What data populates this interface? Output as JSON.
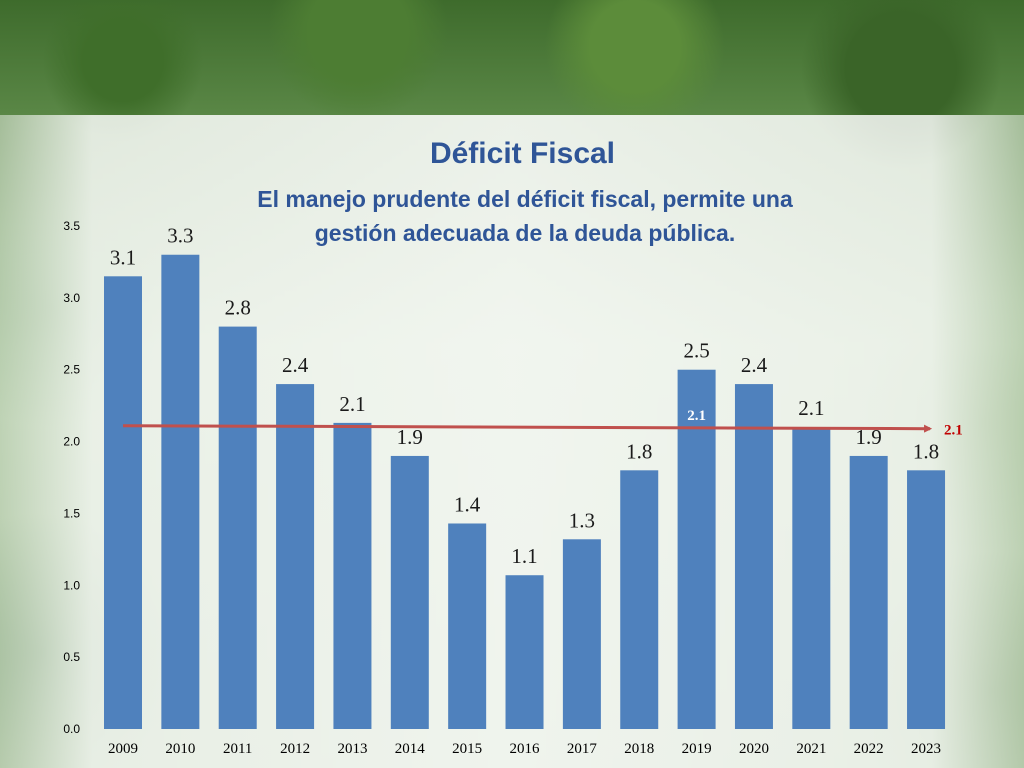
{
  "header": {
    "title": "Déficit Fiscal",
    "subtitle_line1": "El manejo prudente del déficit fiscal, permite una",
    "subtitle_line2": "gestión adecuada de  la deuda pública."
  },
  "chart_data": {
    "type": "bar",
    "categories": [
      "2009",
      "2010",
      "2011",
      "2012",
      "2013",
      "2014",
      "2015",
      "2016",
      "2017",
      "2018",
      "2019",
      "2020",
      "2021",
      "2022",
      "2023"
    ],
    "values": [
      3.15,
      3.3,
      2.8,
      2.4,
      2.13,
      1.9,
      1.43,
      1.07,
      1.32,
      1.8,
      2.5,
      2.4,
      2.1,
      1.9,
      1.8
    ],
    "data_labels": [
      "3.1",
      "3.3",
      "2.8",
      "2.4",
      "2.1",
      "1.9",
      "1.4",
      "1.1",
      "1.3",
      "1.8",
      "2.5",
      "2.4",
      "2.1",
      "1.9",
      "1.8"
    ],
    "yticks": [
      "0.0",
      "0.5",
      "1.0",
      "1.5",
      "2.0",
      "2.5",
      "3.0",
      "3.5"
    ],
    "ylim": [
      0,
      3.5
    ],
    "grid": false,
    "legend": "none",
    "bar_color": "#4f81bd",
    "reference_line": {
      "value": 2.1,
      "label_end": "2.1",
      "label_inner": "2.1",
      "color": "#c0504d",
      "label_color": "#c00000"
    }
  }
}
